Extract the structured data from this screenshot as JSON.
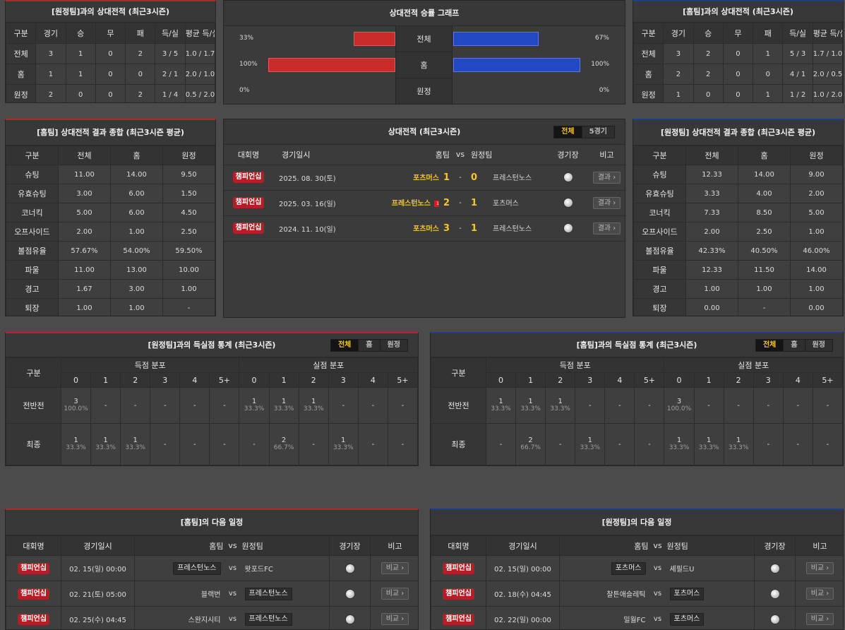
{
  "away_h2h": {
    "title": "[원정팀]과의 상대전적 (최근3시즌)",
    "headers": [
      "구분",
      "경기",
      "승",
      "무",
      "패",
      "득/실",
      "평균 득/실"
    ],
    "rows": [
      [
        "전체",
        "3",
        "1",
        "0",
        "2",
        "3 / 5",
        "1.0 / 1.7"
      ],
      [
        "홈",
        "1",
        "1",
        "0",
        "0",
        "2 / 1",
        "2.0 / 1.0"
      ],
      [
        "원정",
        "2",
        "0",
        "0",
        "2",
        "1 / 4",
        "0.5 / 2.0"
      ]
    ]
  },
  "graph": {
    "title": "상대전적 승률 그래프",
    "rows": [
      {
        "label": "전체",
        "left_text": "33%",
        "right_text": "67%",
        "left": 33,
        "right": 67
      },
      {
        "label": "홈",
        "left_text": "100%",
        "right_text": "100%",
        "left": 100,
        "right": 100
      },
      {
        "label": "원정",
        "left_text": "0%",
        "right_text": "0%",
        "left": 0,
        "right": 0
      }
    ],
    "colors": {
      "left": "#c92b2b",
      "right": "#2348c4"
    }
  },
  "home_h2h": {
    "title": "[홈팀]과의 상대전적 (최근3시즌)",
    "headers": [
      "구분",
      "경기",
      "승",
      "무",
      "패",
      "득/실",
      "평균 득/실"
    ],
    "rows": [
      [
        "전체",
        "3",
        "2",
        "0",
        "1",
        "5 / 3",
        "1.7 / 1.0"
      ],
      [
        "홈",
        "2",
        "2",
        "0",
        "0",
        "4 / 1",
        "2.0 / 0.5"
      ],
      [
        "원정",
        "1",
        "0",
        "0",
        "1",
        "1 / 2",
        "1.0 / 2.0"
      ]
    ]
  },
  "home_summary": {
    "title": "[홈팀] 상대전적 결과 종합 (최근3시즌 평균)",
    "headers": [
      "구분",
      "전체",
      "홈",
      "원정"
    ],
    "rows": [
      [
        "슈팅",
        "11.00",
        "14.00",
        "9.50"
      ],
      [
        "유효슈팅",
        "3.00",
        "6.00",
        "1.50"
      ],
      [
        "코너킥",
        "5.00",
        "6.00",
        "4.50"
      ],
      [
        "오프사이드",
        "2.00",
        "1.00",
        "2.50"
      ],
      [
        "볼점유율",
        "57.67%",
        "54.00%",
        "59.50%"
      ],
      [
        "파울",
        "11.00",
        "13.00",
        "10.00"
      ],
      [
        "경고",
        "1.67",
        "3.00",
        "1.00"
      ],
      [
        "퇴장",
        "1.00",
        "1.00",
        "-"
      ]
    ]
  },
  "matches": {
    "title": "상대전적 (최근3시즌)",
    "tabs": [
      "전체",
      "5경기"
    ],
    "headers": {
      "league": "대회명",
      "date": "경기일시",
      "home": "홈팀",
      "vs": "vs",
      "away": "원정팀",
      "venue": "경기장",
      "note": "비고"
    },
    "rows": [
      {
        "league": "챔피언십",
        "date": "2025. 08. 30(토)",
        "home": "포츠머스",
        "hs": "1",
        "as": "0",
        "away": "프레스턴노스",
        "result": "결과",
        "card": ""
      },
      {
        "league": "챔피언십",
        "date": "2025. 03. 16(일)",
        "home": "프레스턴노스",
        "hs": "2",
        "as": "1",
        "away": "포츠머스",
        "result": "결과",
        "card": "1"
      },
      {
        "league": "챔피언십",
        "date": "2024. 11. 10(일)",
        "home": "포츠머스",
        "hs": "3",
        "as": "1",
        "away": "프레스턴노스",
        "result": "결과",
        "card": ""
      }
    ]
  },
  "away_summary": {
    "title": "[원정팀] 상대전적 결과 종합 (최근3시즌 평균)",
    "headers": [
      "구분",
      "전체",
      "홈",
      "원정"
    ],
    "rows": [
      [
        "슈팅",
        "12.33",
        "14.00",
        "9.00"
      ],
      [
        "유효슈팅",
        "3.33",
        "4.00",
        "2.00"
      ],
      [
        "코너킥",
        "7.33",
        "8.50",
        "5.00"
      ],
      [
        "오프사이드",
        "2.00",
        "2.50",
        "1.00"
      ],
      [
        "볼점유율",
        "42.33%",
        "40.50%",
        "46.00%"
      ],
      [
        "파울",
        "12.33",
        "11.50",
        "14.00"
      ],
      [
        "경고",
        "1.00",
        "1.00",
        "1.00"
      ],
      [
        "퇴장",
        "0.00",
        "-",
        "0.00"
      ]
    ]
  },
  "away_goals": {
    "title": "[원정팀]과의 득실점 통계 (최근3시즌)",
    "tabs": [
      "전체",
      "홈",
      "원정"
    ],
    "label_col": "구분",
    "scored": "득점 분포",
    "conceded": "실점 분포",
    "buckets": [
      "0",
      "1",
      "2",
      "3",
      "4",
      "5+"
    ],
    "rows": [
      {
        "label": "전반전",
        "cells": [
          [
            "3",
            "100.0%"
          ],
          [
            "-",
            ""
          ],
          [
            "-",
            ""
          ],
          [
            "-",
            ""
          ],
          [
            "-",
            ""
          ],
          [
            "-",
            ""
          ],
          [
            "1",
            "33.3%"
          ],
          [
            "1",
            "33.3%"
          ],
          [
            "1",
            "33.3%"
          ],
          [
            "-",
            ""
          ],
          [
            "-",
            ""
          ],
          [
            "-",
            ""
          ]
        ]
      },
      {
        "label": "최종",
        "cells": [
          [
            "1",
            "33.3%"
          ],
          [
            "1",
            "33.3%"
          ],
          [
            "1",
            "33.3%"
          ],
          [
            "-",
            ""
          ],
          [
            "-",
            ""
          ],
          [
            "-",
            ""
          ],
          [
            "-",
            ""
          ],
          [
            "2",
            "66.7%"
          ],
          [
            "-",
            ""
          ],
          [
            "1",
            "33.3%"
          ],
          [
            "-",
            ""
          ],
          [
            "-",
            ""
          ]
        ]
      }
    ]
  },
  "home_goals": {
    "title": "[홈팀]과의 득실점 통계 (최근3시즌)",
    "tabs": [
      "전체",
      "홈",
      "원정"
    ],
    "label_col": "구분",
    "scored": "득점 분포",
    "conceded": "실점 분포",
    "buckets": [
      "0",
      "1",
      "2",
      "3",
      "4",
      "5+"
    ],
    "rows": [
      {
        "label": "전반전",
        "cells": [
          [
            "1",
            "33.3%"
          ],
          [
            "1",
            "33.3%"
          ],
          [
            "1",
            "33.3%"
          ],
          [
            "-",
            ""
          ],
          [
            "-",
            ""
          ],
          [
            "-",
            ""
          ],
          [
            "3",
            "100.0%"
          ],
          [
            "-",
            ""
          ],
          [
            "-",
            ""
          ],
          [
            "-",
            ""
          ],
          [
            "-",
            ""
          ],
          [
            "-",
            ""
          ]
        ]
      },
      {
        "label": "최종",
        "cells": [
          [
            "-",
            ""
          ],
          [
            "2",
            "66.7%"
          ],
          [
            "-",
            ""
          ],
          [
            "1",
            "33.3%"
          ],
          [
            "-",
            ""
          ],
          [
            "-",
            ""
          ],
          [
            "1",
            "33.3%"
          ],
          [
            "1",
            "33.3%"
          ],
          [
            "1",
            "33.3%"
          ],
          [
            "-",
            ""
          ],
          [
            "-",
            ""
          ],
          [
            "-",
            ""
          ]
        ]
      }
    ]
  },
  "home_next": {
    "title": "[홈팀]의 다음 일정",
    "headers": {
      "league": "대회명",
      "date": "경기일시",
      "home": "홈팀",
      "vs": "vs",
      "away": "원정팀",
      "venue": "경기장",
      "note": "비고"
    },
    "rows": [
      {
        "league": "챔피언십",
        "date": "02. 15(일) 00:00",
        "home": "프레스턴노스",
        "away": "왓포드FC",
        "vs": "vs",
        "btn": "비교",
        "boxed": "home"
      },
      {
        "league": "챔피언십",
        "date": "02. 21(토) 05:00",
        "home": "블랙번",
        "away": "프레스턴노스",
        "vs": "vs",
        "btn": "비교",
        "boxed": "away"
      },
      {
        "league": "챔피언십",
        "date": "02. 25(수) 04:45",
        "home": "스완지시티",
        "away": "프레스턴노스",
        "vs": "vs",
        "btn": "비교",
        "boxed": "away"
      }
    ]
  },
  "away_next": {
    "title": "[원정팀]의 다음 일정",
    "headers": {
      "league": "대회명",
      "date": "경기일시",
      "home": "홈팀",
      "vs": "vs",
      "away": "원정팀",
      "venue": "경기장",
      "note": "비고"
    },
    "rows": [
      {
        "league": "챔피언십",
        "date": "02. 15(일) 00:00",
        "home": "포츠머스",
        "away": "셰필드U",
        "vs": "vs",
        "btn": "비교",
        "boxed": "home"
      },
      {
        "league": "챔피언십",
        "date": "02. 18(수) 04:45",
        "home": "찰튼애슬레틱",
        "away": "포츠머스",
        "vs": "vs",
        "btn": "비교",
        "boxed": "away"
      },
      {
        "league": "챔피언십",
        "date": "02. 22(일) 00:00",
        "home": "밀월FC",
        "away": "포츠머스",
        "vs": "vs",
        "btn": "비교",
        "boxed": "away"
      }
    ]
  }
}
